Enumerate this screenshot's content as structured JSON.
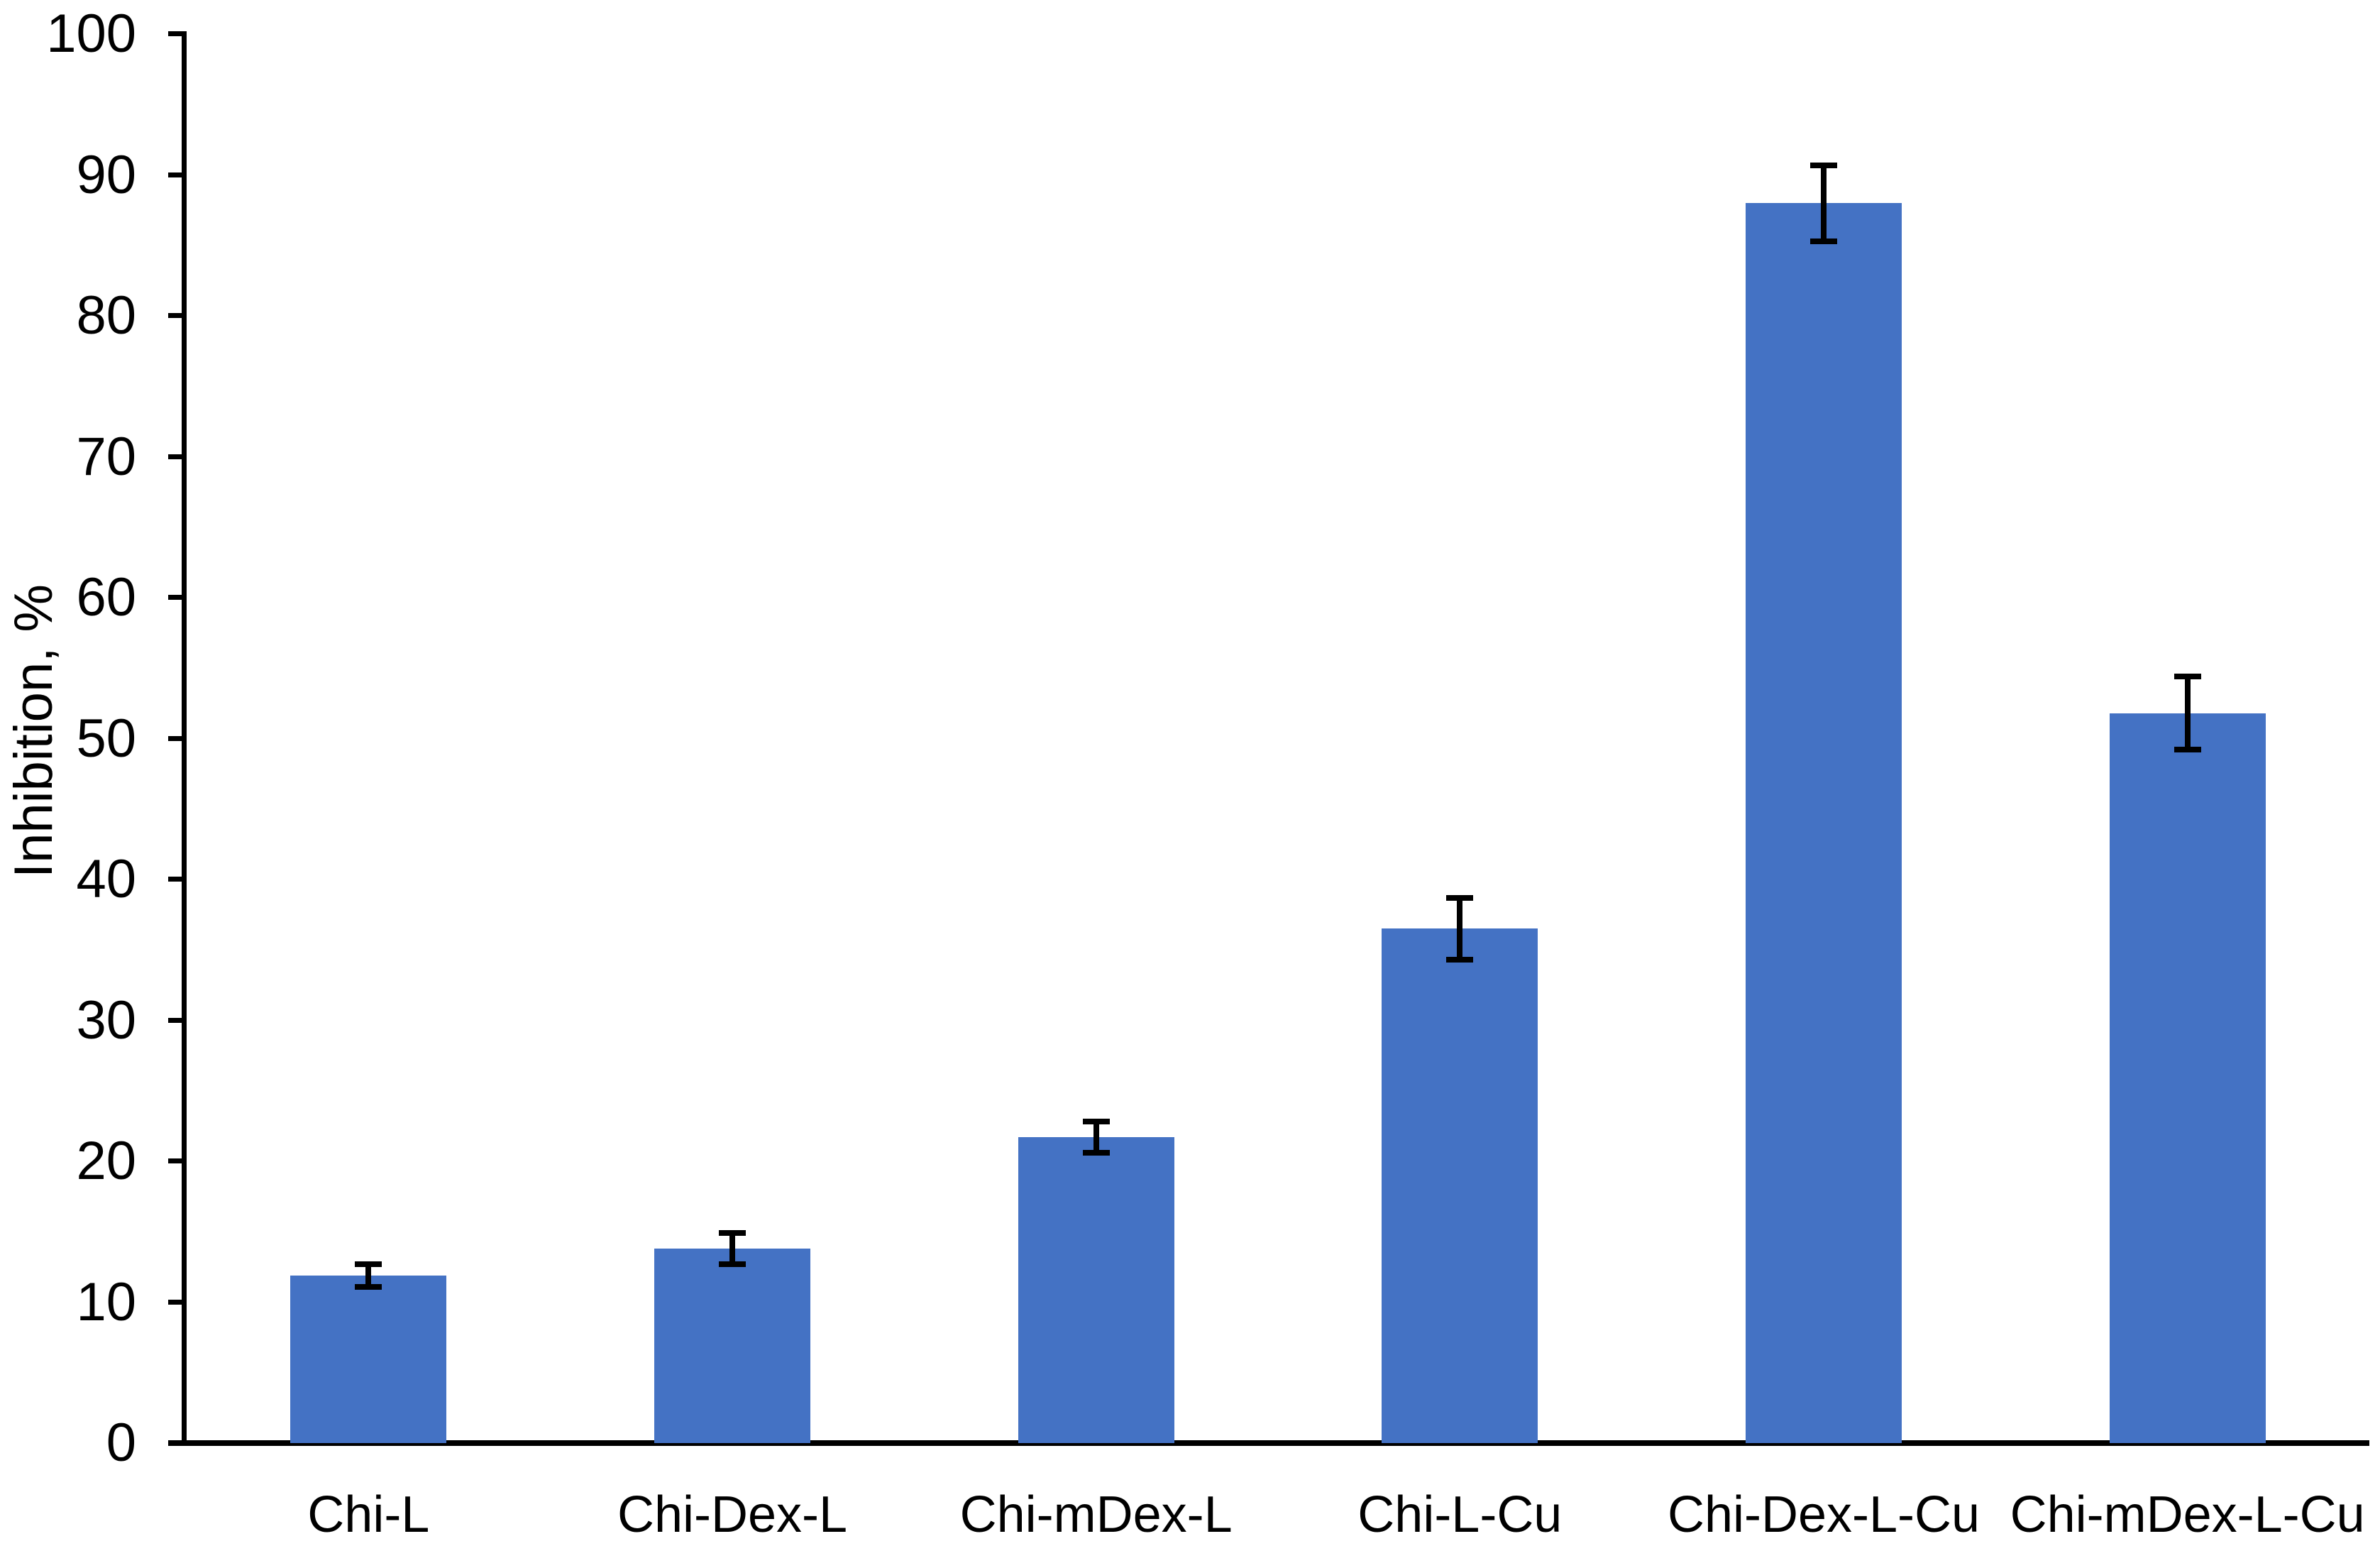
{
  "chart_data": {
    "type": "bar",
    "title": "",
    "xlabel": "",
    "ylabel": "Inhibition, %",
    "ylim": [
      0,
      100
    ],
    "yticks": [
      0,
      10,
      20,
      30,
      40,
      50,
      60,
      70,
      80,
      90,
      100
    ],
    "grid": false,
    "legend_position": "none",
    "bar_color": "#4472C4",
    "axis_color": "#000000",
    "error_bar_color": "#000000",
    "categories": [
      "Chi-L",
      "Chi-Dex-L",
      "Chi-mDex-L",
      "Chi-L-Cu",
      "Chi-Dex-L-Cu",
      "Chi-mDex-L-Cu"
    ],
    "series": [
      {
        "name": "Inhibition",
        "values": [
          11.9,
          13.8,
          21.7,
          36.5,
          88.0,
          51.8
        ],
        "error_bars": [
          0.8,
          1.1,
          1.1,
          2.2,
          2.7,
          2.6
        ]
      }
    ]
  }
}
